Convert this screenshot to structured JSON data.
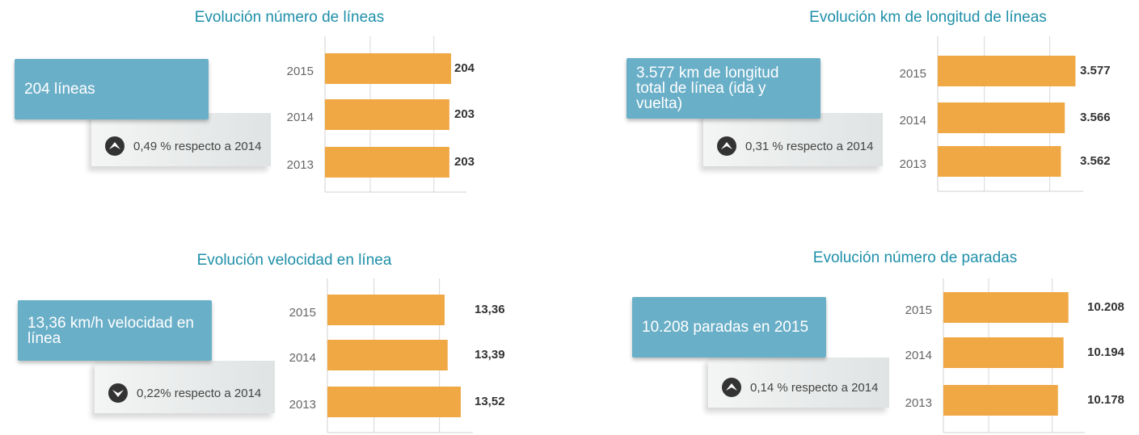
{
  "chart_data": [
    {
      "type": "bar",
      "title": "Evolución número de líneas",
      "kpi": "204 líneas",
      "change": "0,49 % respecto a 2014",
      "trend": "up",
      "categories": [
        "2015",
        "2014",
        "2013"
      ],
      "values": [
        204,
        203,
        203
      ],
      "value_labels": [
        "204",
        "203",
        "203"
      ],
      "color": "#f0a844",
      "xlim": [
        130,
        213
      ],
      "grid": true
    },
    {
      "type": "bar",
      "title": "Evolución km de longitud de líneas",
      "kpi": "3.577 km de longitud total de línea (ida y vuelta)",
      "change": "0,31 % respecto a 2014",
      "trend": "up",
      "categories": [
        "2015",
        "2014",
        "2013"
      ],
      "values": [
        3577,
        3566,
        3562
      ],
      "value_labels": [
        "3.577",
        "3.566",
        "3.562"
      ],
      "color": "#f0a844",
      "xlim": [
        3435,
        3585
      ],
      "grid": true
    },
    {
      "type": "bar",
      "title": "Evolución velocidad en línea",
      "kpi": "13,36 km/h velocidad en línea",
      "change": "0,22% respecto a 2014",
      "trend": "down",
      "categories": [
        "2015",
        "2014",
        "2013"
      ],
      "values": [
        13.36,
        13.39,
        13.52
      ],
      "value_labels": [
        "13,36",
        "13,39",
        "13,52"
      ],
      "color": "#f0a844",
      "xlim": [
        12.2,
        13.64
      ],
      "grid": true
    },
    {
      "type": "bar",
      "title": "Evolución número de paradas",
      "kpi": "10.208 paradas en 2015",
      "change": "0,14 % respecto a 2014",
      "trend": "up",
      "categories": [
        "2015",
        "2014",
        "2013"
      ],
      "values": [
        10208,
        10194,
        10178
      ],
      "value_labels": [
        "10.208",
        "10.194",
        "10.178"
      ],
      "color": "#f0a844",
      "xlim": [
        9850,
        10255
      ],
      "grid": true
    }
  ]
}
